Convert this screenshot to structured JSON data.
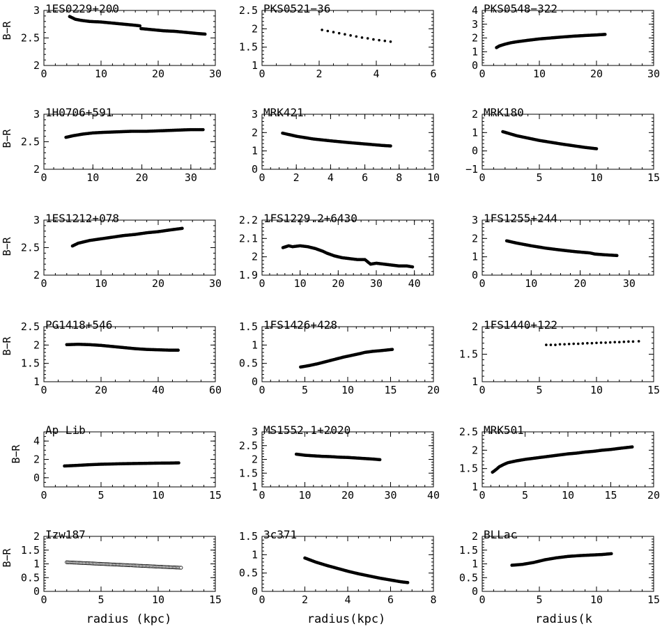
{
  "figure": {
    "ylabel": "B−R",
    "xlabels": [
      "radius (kpc)",
      "radius(kpc)",
      "radius(k"
    ]
  },
  "chart_data": [
    {
      "type": "scatter",
      "title": "1ES0229+200",
      "xlim": [
        0,
        30
      ],
      "ylim": [
        2,
        3
      ],
      "xticks": [
        0,
        10,
        20,
        30
      ],
      "yticks": [
        2,
        2.5,
        3
      ],
      "marker": "dense",
      "x": [
        4.5,
        5.5,
        6.5,
        8,
        10,
        12,
        14,
        16,
        16.8,
        17,
        19,
        21,
        23,
        25,
        27,
        28.2
      ],
      "y": [
        2.89,
        2.84,
        2.82,
        2.8,
        2.79,
        2.77,
        2.75,
        2.73,
        2.72,
        2.67,
        2.65,
        2.63,
        2.62,
        2.6,
        2.58,
        2.57
      ]
    },
    {
      "type": "scatter",
      "title": "PKS0521−36",
      "xlim": [
        0,
        6
      ],
      "ylim": [
        1,
        2.5
      ],
      "xticks": [
        0,
        2,
        4,
        6
      ],
      "yticks": [
        1,
        1.5,
        2,
        2.5
      ],
      "marker": "sparse",
      "x": [
        2.1,
        2.3,
        2.5,
        2.7,
        2.9,
        3.1,
        3.3,
        3.5,
        3.7,
        3.9,
        4.1,
        4.3,
        4.5
      ],
      "y": [
        1.97,
        1.94,
        1.91,
        1.88,
        1.85,
        1.82,
        1.79,
        1.76,
        1.74,
        1.71,
        1.69,
        1.67,
        1.65
      ]
    },
    {
      "type": "scatter",
      "title": "PKS0548−322",
      "xlim": [
        0,
        30
      ],
      "ylim": [
        0,
        4
      ],
      "xticks": [
        0,
        10,
        20,
        30
      ],
      "yticks": [
        0,
        1,
        2,
        3,
        4
      ],
      "marker": "dense",
      "x": [
        2.5,
        3,
        4,
        5,
        6,
        8,
        10,
        12,
        14,
        16,
        18,
        20,
        21.5
      ],
      "y": [
        1.3,
        1.42,
        1.55,
        1.65,
        1.72,
        1.83,
        1.93,
        2.0,
        2.07,
        2.13,
        2.18,
        2.22,
        2.26
      ]
    },
    {
      "type": "scatter",
      "title": "1H0706+591",
      "xlim": [
        0,
        35
      ],
      "ylim": [
        2,
        3
      ],
      "xticks": [
        0,
        10,
        20,
        30
      ],
      "yticks": [
        2,
        2.5,
        3
      ],
      "marker": "dense",
      "x": [
        4.5,
        6,
        8,
        10,
        12,
        15,
        18,
        21,
        24,
        27,
        30,
        32.5
      ],
      "y": [
        2.58,
        2.61,
        2.64,
        2.66,
        2.67,
        2.68,
        2.69,
        2.69,
        2.7,
        2.71,
        2.72,
        2.72
      ]
    },
    {
      "type": "scatter",
      "title": "MRK421",
      "xlim": [
        0,
        10
      ],
      "ylim": [
        0,
        3
      ],
      "xticks": [
        0,
        2,
        4,
        6,
        8,
        10
      ],
      "yticks": [
        0,
        1,
        2,
        3
      ],
      "marker": "dense",
      "x": [
        1.2,
        2,
        3,
        4,
        5,
        6,
        7,
        7.5
      ],
      "y": [
        1.97,
        1.8,
        1.65,
        1.55,
        1.46,
        1.38,
        1.3,
        1.27
      ]
    },
    {
      "type": "scatter",
      "title": "MRK180",
      "xlim": [
        0,
        15
      ],
      "ylim": [
        -1,
        2
      ],
      "xticks": [
        0,
        5,
        10,
        15
      ],
      "yticks": [
        -1,
        0,
        1,
        2
      ],
      "marker": "dense",
      "x": [
        1.8,
        3,
        4,
        5,
        6,
        7,
        8,
        9,
        10
      ],
      "y": [
        1.05,
        0.83,
        0.7,
        0.57,
        0.47,
        0.37,
        0.28,
        0.19,
        0.12
      ]
    },
    {
      "type": "scatter",
      "title": "1ES1212+078",
      "xlim": [
        0,
        30
      ],
      "ylim": [
        2,
        3
      ],
      "xticks": [
        0,
        10,
        20,
        30
      ],
      "yticks": [
        2,
        2.5,
        3
      ],
      "marker": "dense",
      "x": [
        5,
        6,
        8,
        10,
        12,
        14,
        16,
        18,
        20,
        22,
        24.2
      ],
      "y": [
        2.53,
        2.58,
        2.63,
        2.66,
        2.69,
        2.72,
        2.74,
        2.77,
        2.79,
        2.82,
        2.85
      ]
    },
    {
      "type": "scatter",
      "title": "1FS1229.2+6430",
      "xlim": [
        0,
        45
      ],
      "ylim": [
        1.9,
        2.2
      ],
      "xticks": [
        0,
        10,
        20,
        30,
        40
      ],
      "yticks": [
        1.9,
        2,
        2.1,
        2.2
      ],
      "marker": "dense",
      "x": [
        5.5,
        7,
        8,
        10,
        12,
        14,
        16,
        17,
        19,
        21,
        23,
        25,
        27,
        28.5,
        30,
        32,
        34,
        36,
        38,
        39.5
      ],
      "y": [
        2.05,
        2.06,
        2.055,
        2.06,
        2.055,
        2.045,
        2.03,
        2.02,
        2.005,
        1.995,
        1.99,
        1.985,
        1.985,
        1.96,
        1.965,
        1.96,
        1.955,
        1.95,
        1.95,
        1.945
      ]
    },
    {
      "type": "scatter",
      "title": "1FS1255+244",
      "xlim": [
        0,
        35
      ],
      "ylim": [
        0,
        3
      ],
      "xticks": [
        0,
        10,
        20,
        30
      ],
      "yticks": [
        0,
        1,
        2,
        3
      ],
      "marker": "dense",
      "x": [
        5,
        7,
        10,
        13,
        16,
        19,
        22,
        23,
        25,
        27.5
      ],
      "y": [
        1.87,
        1.75,
        1.6,
        1.47,
        1.37,
        1.28,
        1.21,
        1.15,
        1.11,
        1.07
      ]
    },
    {
      "type": "scatter",
      "title": "PG1418+546",
      "xlim": [
        0,
        60
      ],
      "ylim": [
        1,
        2.5
      ],
      "xticks": [
        0,
        20,
        40,
        60
      ],
      "yticks": [
        1,
        1.5,
        2,
        2.5
      ],
      "marker": "dense",
      "x": [
        8,
        12,
        16,
        20,
        24,
        28,
        32,
        36,
        40,
        44,
        47
      ],
      "y": [
        2.01,
        2.02,
        2.01,
        1.99,
        1.96,
        1.93,
        1.9,
        1.88,
        1.87,
        1.86,
        1.86
      ]
    },
    {
      "type": "scatter",
      "title": "1FS1426+428",
      "xlim": [
        0,
        20
      ],
      "ylim": [
        0,
        1.5
      ],
      "xticks": [
        0,
        5,
        10,
        15,
        20
      ],
      "yticks": [
        0,
        0.5,
        1,
        1.5
      ],
      "marker": "dense",
      "x": [
        4.5,
        5.5,
        6.5,
        7.5,
        8.5,
        9.5,
        10.5,
        11.5,
        12,
        13,
        14,
        15.2
      ],
      "y": [
        0.4,
        0.44,
        0.49,
        0.55,
        0.61,
        0.67,
        0.72,
        0.77,
        0.8,
        0.83,
        0.85,
        0.88
      ]
    },
    {
      "type": "scatter",
      "title": "1FS1440+122",
      "xlim": [
        0,
        15
      ],
      "ylim": [
        1,
        2
      ],
      "xticks": [
        0,
        5,
        10,
        15
      ],
      "yticks": [
        1,
        1.5,
        2
      ],
      "marker": "sparse",
      "x": [
        5.6,
        6,
        6.4,
        6.8,
        7.2,
        7.6,
        8,
        8.4,
        8.8,
        9.2,
        9.6,
        10,
        10.4,
        10.8,
        11.2,
        11.6,
        12,
        12.4,
        12.8,
        13.2,
        13.7
      ],
      "y": [
        1.67,
        1.67,
        1.67,
        1.68,
        1.68,
        1.685,
        1.69,
        1.69,
        1.695,
        1.7,
        1.7,
        1.705,
        1.71,
        1.71,
        1.715,
        1.72,
        1.72,
        1.725,
        1.73,
        1.73,
        1.735
      ]
    },
    {
      "type": "scatter",
      "title": "Ap Lib",
      "xlim": [
        0,
        15
      ],
      "ylim": [
        -1,
        5
      ],
      "xticks": [
        0,
        5,
        10,
        15
      ],
      "yticks": [
        0,
        2,
        4
      ],
      "marker": "dense",
      "x": [
        1.8,
        3,
        4,
        5,
        6,
        7,
        8,
        9,
        10,
        11,
        11.8
      ],
      "y": [
        1.28,
        1.35,
        1.42,
        1.47,
        1.5,
        1.53,
        1.55,
        1.57,
        1.59,
        1.6,
        1.62
      ]
    },
    {
      "type": "scatter",
      "title": "MS1552.1+2020",
      "xlim": [
        0,
        40
      ],
      "ylim": [
        1,
        3
      ],
      "xticks": [
        0,
        10,
        20,
        30,
        40
      ],
      "yticks": [
        1,
        1.5,
        2,
        2.5,
        3
      ],
      "marker": "dense",
      "x": [
        8,
        10,
        12,
        14,
        16,
        18,
        20,
        22,
        24,
        26,
        27.5
      ],
      "y": [
        2.19,
        2.15,
        2.13,
        2.11,
        2.1,
        2.08,
        2.07,
        2.05,
        2.03,
        2.01,
        1.99
      ]
    },
    {
      "type": "scatter",
      "title": "MRK501",
      "xlim": [
        0,
        20
      ],
      "ylim": [
        1,
        2.5
      ],
      "xticks": [
        0,
        5,
        10,
        15,
        20
      ],
      "yticks": [
        1,
        1.5,
        2,
        2.5
      ],
      "marker": "dense",
      "x": [
        1.2,
        1.6,
        2,
        2.5,
        3,
        4,
        5,
        6,
        7,
        8,
        9,
        10,
        11,
        12,
        13,
        14,
        15,
        16,
        17.5
      ],
      "y": [
        1.4,
        1.47,
        1.55,
        1.61,
        1.66,
        1.71,
        1.75,
        1.78,
        1.81,
        1.84,
        1.87,
        1.9,
        1.92,
        1.95,
        1.97,
        2.0,
        2.02,
        2.05,
        2.09
      ]
    },
    {
      "type": "scatter",
      "title": "Izw187",
      "xlim": [
        0,
        15
      ],
      "ylim": [
        0,
        2
      ],
      "xticks": [
        0,
        5,
        10,
        15
      ],
      "yticks": [
        0,
        0.5,
        1,
        1.5,
        2
      ],
      "marker": "open",
      "x": [
        2,
        2.5,
        3,
        3.5,
        4,
        4.5,
        5,
        5.5,
        6,
        6.5,
        7,
        7.5,
        8,
        8.5,
        9,
        9.5,
        10,
        10.5,
        11,
        11.5,
        12
      ],
      "y": [
        1.06,
        1.05,
        1.04,
        1.03,
        1.02,
        1.01,
        1.0,
        0.99,
        0.98,
        0.97,
        0.96,
        0.95,
        0.94,
        0.93,
        0.92,
        0.91,
        0.9,
        0.89,
        0.88,
        0.87,
        0.86
      ]
    },
    {
      "type": "scatter",
      "title": "3c371",
      "xlim": [
        0,
        8
      ],
      "ylim": [
        0,
        1.5
      ],
      "xticks": [
        0,
        2,
        4,
        6,
        8
      ],
      "yticks": [
        0,
        0.5,
        1,
        1.5
      ],
      "marker": "dense",
      "x": [
        2,
        2.5,
        3,
        3.5,
        4,
        4.5,
        5,
        5.5,
        6,
        6.5,
        6.8
      ],
      "y": [
        0.91,
        0.8,
        0.71,
        0.63,
        0.55,
        0.48,
        0.42,
        0.36,
        0.31,
        0.26,
        0.24
      ]
    },
    {
      "type": "scatter",
      "title": "BLLac",
      "xlim": [
        0,
        15
      ],
      "ylim": [
        0,
        2
      ],
      "xticks": [
        0,
        5,
        10,
        15
      ],
      "yticks": [
        0,
        0.5,
        1,
        1.5,
        2
      ],
      "marker": "dense",
      "x": [
        2.6,
        3.5,
        4.5,
        5.5,
        6.5,
        7.5,
        8.5,
        9.5,
        10.5,
        11.3
      ],
      "y": [
        0.95,
        0.98,
        1.05,
        1.15,
        1.22,
        1.27,
        1.3,
        1.32,
        1.34,
        1.37
      ]
    }
  ]
}
